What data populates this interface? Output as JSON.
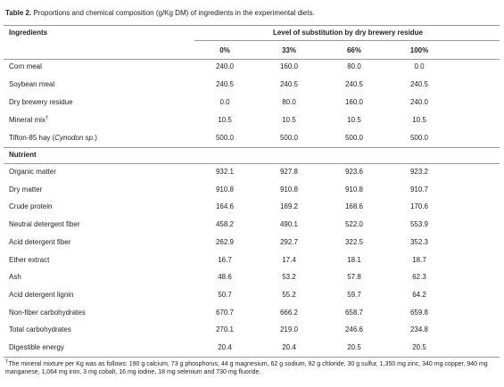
{
  "title": {
    "label": "Table 2.",
    "text": " Proportions and chemical composition (g/Kg DM) of ingredients in the experimental diets."
  },
  "header": {
    "first": "Ingredients",
    "group": "Level of substitution by dry brewery residue",
    "levels": [
      "0%",
      "33%",
      "66%",
      "100%"
    ]
  },
  "ingredient_rows": [
    {
      "name": "Corn meal",
      "values": [
        "240.0",
        "160.0",
        "80.0",
        "0.0"
      ]
    },
    {
      "name": "Soybean meal",
      "values": [
        "240.5",
        "240.5",
        "240.5",
        "240.5"
      ]
    },
    {
      "name": "Dry brewery residue",
      "values": [
        "0.0",
        "80.0",
        "160.0",
        "240.0"
      ]
    },
    {
      "name": "Mineral mix",
      "sup": "†",
      "values": [
        "10.5",
        "10.5",
        "10.5",
        "10.5"
      ]
    },
    {
      "name": "Tifton-85 hay (",
      "italic": "Cynodon sp.",
      "name_end": ")",
      "values": [
        "500.0",
        "500.0",
        "500.0",
        "500.0"
      ]
    }
  ],
  "nutrient_heading": "Nutrient",
  "nutrient_rows": [
    {
      "name": "Organic matter",
      "values": [
        "932.1",
        "927.8",
        "923.6",
        "923.2"
      ]
    },
    {
      "name": "Dry matter",
      "values": [
        "910.8",
        "910.8",
        "910.8",
        "910.7"
      ]
    },
    {
      "name": "Crude protein",
      "values": [
        "164.6",
        "169.2",
        "168.6",
        "170.6"
      ]
    },
    {
      "name": "Neutral detergent fiber",
      "values": [
        "458.2",
        "490.1",
        "522.0",
        "553.9"
      ]
    },
    {
      "name": "Acid detergent fiber",
      "values": [
        "262.9",
        "292.7",
        "322.5",
        "352.3"
      ]
    },
    {
      "name": "Ether extract",
      "values": [
        "16.7",
        "17.4",
        "18.1",
        "18.7"
      ]
    },
    {
      "name": "Ash",
      "values": [
        "48.6",
        "53.2",
        "57.8",
        "62.3"
      ]
    },
    {
      "name": "Acid detergent lignin",
      "values": [
        "50.7",
        "55.2",
        "59.7",
        "64.2"
      ]
    },
    {
      "name": "Non-fiber carbohydrates",
      "values": [
        "670.7",
        "666.2",
        "658.7",
        "659.8"
      ]
    },
    {
      "name": "Total carbohydrates",
      "values": [
        "270.1",
        "219.0",
        "246.6",
        "234.8"
      ]
    },
    {
      "name": "Digestible energy",
      "values": [
        "20.4",
        "20.4",
        "20.5",
        "20.5"
      ]
    }
  ],
  "footnote": {
    "marker": "†",
    "text": "The mineral mixture per Kg was as follows: 190 g calcium, 73 g phosphorus, 44 g magnesium, 62 g sodium, 92 g chloride, 30 g sulfur, 1,350 mg zinc, 340 mg copper, 940 mg manganese, 1,064 mg iron, 3 mg cobalt, 16 mg iodine, 18 mg selenium and 730 mg fluoride."
  }
}
